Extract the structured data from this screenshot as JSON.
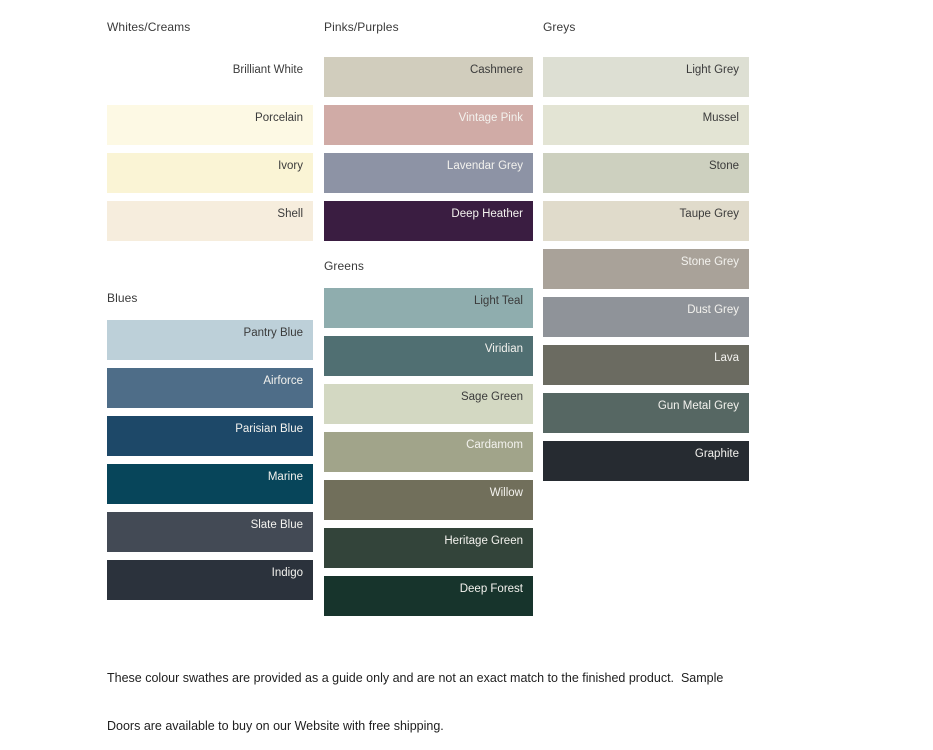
{
  "page": {
    "background": "#ffffff",
    "text_color_dark": "#3b3b3b",
    "text_color_light": "#f3f2ee"
  },
  "columns": [
    {
      "groups": [
        {
          "header": "Whites/Creams",
          "swatches": [
            {
              "name": "Brilliant White",
              "color": "#ffffff",
              "label": "dark"
            },
            {
              "name": "Porcelain",
              "color": "#fdf9e4",
              "label": "dark"
            },
            {
              "name": "Ivory",
              "color": "#faf4d5",
              "label": "dark"
            },
            {
              "name": "Shell",
              "color": "#f6eddd",
              "label": "dark"
            }
          ]
        },
        {
          "header": "Blues",
          "swatches": [
            {
              "name": "Pantry Blue",
              "color": "#bdd0d9",
              "label": "dark"
            },
            {
              "name": "Airforce",
              "color": "#4e6d88",
              "label": "light"
            },
            {
              "name": "Parisian Blue",
              "color": "#1d4868",
              "label": "light"
            },
            {
              "name": "Marine",
              "color": "#07455a",
              "label": "light"
            },
            {
              "name": "Slate Blue",
              "color": "#434a55",
              "label": "light"
            },
            {
              "name": "Indigo",
              "color": "#2b323c",
              "label": "light"
            }
          ]
        }
      ]
    },
    {
      "groups": [
        {
          "header": "Pinks/Purples",
          "swatches": [
            {
              "name": "Cashmere",
              "color": "#d1cdbd",
              "label": "dark"
            },
            {
              "name": "Vintage Pink",
              "color": "#d0aba6",
              "label": "light"
            },
            {
              "name": "Lavendar Grey",
              "color": "#8d93a5",
              "label": "light"
            },
            {
              "name": "Deep Heather",
              "color": "#3a1d41",
              "label": "light"
            }
          ]
        },
        {
          "header": "Greens",
          "swatches": [
            {
              "name": "Light Teal",
              "color": "#8fadae",
              "label": "dark"
            },
            {
              "name": "Viridian",
              "color": "#506f72",
              "label": "light"
            },
            {
              "name": "Sage Green",
              "color": "#d3d8c2",
              "label": "dark"
            },
            {
              "name": "Cardamom",
              "color": "#a1a48a",
              "label": "light"
            },
            {
              "name": "Willow",
              "color": "#716f5b",
              "label": "light"
            },
            {
              "name": "Heritage Green",
              "color": "#33443a",
              "label": "light"
            },
            {
              "name": "Deep Forest",
              "color": "#17342c",
              "label": "light"
            }
          ]
        }
      ]
    },
    {
      "groups": [
        {
          "header": "Greys",
          "swatches": [
            {
              "name": "Light Grey",
              "color": "#dddfd3",
              "label": "dark"
            },
            {
              "name": "Mussel",
              "color": "#e3e4d4",
              "label": "dark"
            },
            {
              "name": "Stone",
              "color": "#cdd0bf",
              "label": "dark"
            },
            {
              "name": "Taupe Grey",
              "color": "#e0dbcb",
              "label": "dark"
            },
            {
              "name": "Stone Grey",
              "color": "#a9a299",
              "label": "light"
            },
            {
              "name": "Dust Grey",
              "color": "#8f9399",
              "label": "light"
            },
            {
              "name": "Lava",
              "color": "#6b6b61",
              "label": "light"
            },
            {
              "name": "Gun Metal Grey",
              "color": "#566763",
              "label": "light"
            },
            {
              "name": "Graphite",
              "color": "#262b31",
              "label": "light"
            }
          ]
        }
      ]
    }
  ],
  "footer": {
    "line1": "These colour swathes are provided as a guide only and are not an exact match to the finished product.  Sample",
    "line2": "Doors are available to buy on our Website with free shipping."
  }
}
